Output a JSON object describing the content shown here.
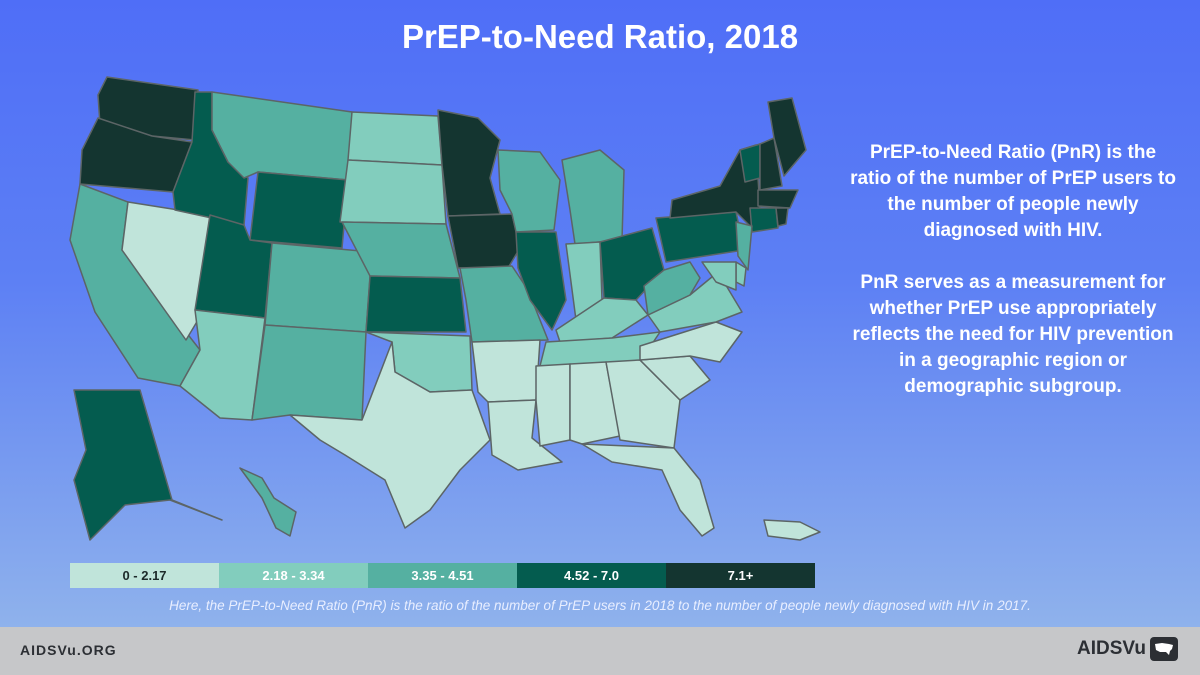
{
  "title": "PrEP-to-Need Ratio, 2018",
  "sidebar": {
    "definition": "PrEP-to-Need Ratio (PnR) is the ratio of the number of PrEP users to the number of people newly diagnosed with HIV.",
    "purpose": "PnR serves as a measurement for whether PrEP use appropriately reflects the need for HIV prevention in a geographic region or demographic subgroup."
  },
  "legend": [
    {
      "label": "0 - 2.17",
      "color": "#c0e4da",
      "text_color": "#1d2a2a"
    },
    {
      "label": "2.18 - 3.34",
      "color": "#82cdbd",
      "text_color": "#ffffff"
    },
    {
      "label": "3.35 - 4.51",
      "color": "#55b0a1",
      "text_color": "#ffffff"
    },
    {
      "label": "4.52 - 7.0",
      "color": "#045c4f",
      "text_color": "#ffffff"
    },
    {
      "label": "7.1+",
      "color": "#143530",
      "text_color": "#ffffff"
    }
  ],
  "footnote": "Here, the PrEP-to-Need Ratio (PnR) is the ratio of the number of PrEP users in 2018 to the number of people newly diagnosed with HIV in 2017.",
  "footer": {
    "url": "AIDSVu.ORG",
    "logo_text": "AIDSVu"
  },
  "map": {
    "state_categories": {
      "WA": 5,
      "OR": 5,
      "CA": 3,
      "NV": 1,
      "ID": 4,
      "MT": 3,
      "WY": 4,
      "UT": 4,
      "AZ": 2,
      "CO": 3,
      "NM": 3,
      "ND": 2,
      "SD": 2,
      "NE": 3,
      "KS": 4,
      "OK": 2,
      "TX": 1,
      "MN": 5,
      "IA": 5,
      "MO": 3,
      "AR": 1,
      "LA": 1,
      "WI": 3,
      "IL": 4,
      "MI": 3,
      "IN": 2,
      "OH": 4,
      "KY": 2,
      "TN": 2,
      "MS": 1,
      "AL": 1,
      "GA": 1,
      "FL": 1,
      "SC": 1,
      "NC": 1,
      "VA": 2,
      "WV": 3,
      "PA": 4,
      "NY": 5,
      "VT": 4,
      "NH": 5,
      "ME": 5,
      "MA": 5,
      "CT": 4,
      "RI": 5,
      "NJ": 3,
      "DE": 2,
      "MD": 2,
      "AK": 4,
      "HI": 3,
      "PR": 1
    }
  }
}
